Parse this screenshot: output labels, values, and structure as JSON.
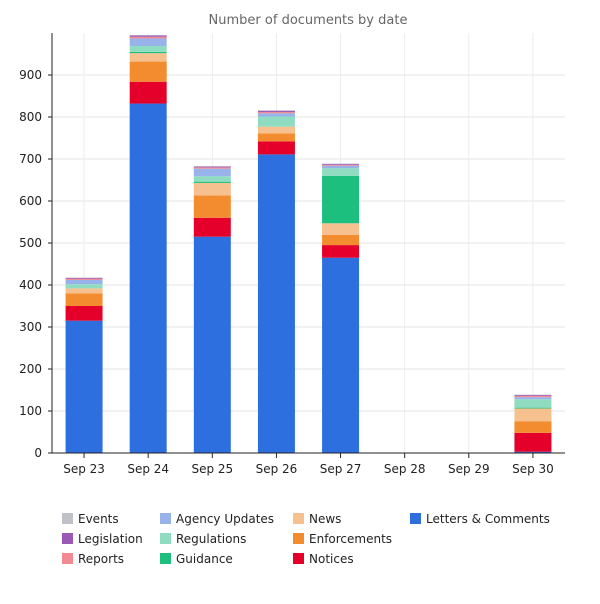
{
  "chart_data": {
    "type": "bar",
    "stacked": true,
    "title": "Number of documents by date",
    "xlabel": "",
    "ylabel": "",
    "ylim": [
      0,
      1000
    ],
    "yticks": [
      0,
      100,
      200,
      300,
      400,
      500,
      600,
      700,
      800,
      900
    ],
    "grid": true,
    "legend_position": "bottom",
    "categories": [
      "Sep 23",
      "Sep 24",
      "Sep 25",
      "Sep 26",
      "Sep 27",
      "Sep 28",
      "Sep 29",
      "Sep 30"
    ],
    "series": [
      {
        "name": "Letters & Comments",
        "color": "#2e6fe0",
        "values": [
          315,
          832,
          515,
          711,
          465,
          0,
          0,
          3
        ]
      },
      {
        "name": "Notices",
        "color": "#e4002b",
        "values": [
          35,
          52,
          45,
          31,
          30,
          0,
          0,
          45
        ]
      },
      {
        "name": "Enforcements",
        "color": "#f28c2f",
        "values": [
          30,
          48,
          53,
          19,
          24,
          0,
          0,
          27
        ]
      },
      {
        "name": "News",
        "color": "#f7c08f",
        "values": [
          12,
          20,
          30,
          16,
          28,
          0,
          0,
          31
        ]
      },
      {
        "name": "Guidance",
        "color": "#1dbf7e",
        "values": [
          0,
          3,
          3,
          0,
          113,
          0,
          0,
          2
        ]
      },
      {
        "name": "Regulations",
        "color": "#8fdcc0",
        "values": [
          10,
          14,
          13,
          24,
          18,
          0,
          0,
          20
        ]
      },
      {
        "name": "Agency Updates",
        "color": "#98b2ea",
        "values": [
          10,
          18,
          18,
          8,
          6,
          0,
          0,
          5
        ]
      },
      {
        "name": "Reports",
        "color": "#f28a93",
        "values": [
          3,
          4,
          3,
          3,
          2,
          0,
          0,
          3
        ]
      },
      {
        "name": "Legislation",
        "color": "#9b59b6",
        "values": [
          2,
          3,
          2,
          3,
          2,
          0,
          0,
          2
        ]
      },
      {
        "name": "Events",
        "color": "#c0c0c8",
        "values": [
          1,
          1,
          1,
          1,
          1,
          0,
          0,
          1
        ]
      }
    ],
    "legend_order": [
      "Events",
      "Legislation",
      "Reports",
      "Agency Updates",
      "Regulations",
      "Guidance",
      "News",
      "Enforcements",
      "Notices",
      "Letters & Comments"
    ]
  }
}
